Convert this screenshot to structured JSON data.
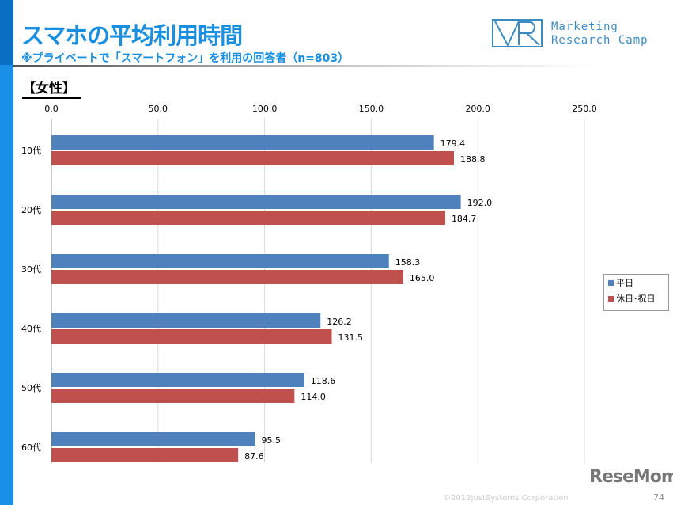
{
  "header": {
    "title": "スマホの平均利用時間",
    "subtitle": "※プライベートで「スマートフォン」を利用の回答者（n=803）",
    "logo_text_1": "Marketing",
    "logo_text_2": "Research Camp"
  },
  "section": "【女性】",
  "footer": {
    "copyright": "©2012JustSystems Corporation",
    "page": "74",
    "watermark": "ReseMom"
  },
  "chart_data": {
    "type": "bar",
    "orientation": "horizontal",
    "categories": [
      "10代",
      "20代",
      "30代",
      "40代",
      "50代",
      "60代"
    ],
    "series": [
      {
        "name": "平日",
        "color": "#4f81bd",
        "values": [
          179.4,
          192.0,
          158.3,
          126.2,
          118.6,
          95.5
        ]
      },
      {
        "name": "休日･祝日",
        "color": "#c0504d",
        "values": [
          188.8,
          184.7,
          165.0,
          131.5,
          114.0,
          87.6
        ]
      }
    ],
    "xlim": [
      0,
      250
    ],
    "ticks": [
      "0.0",
      "50.0",
      "100.0",
      "150.0",
      "200.0",
      "250.0"
    ],
    "grid": true,
    "legend": "right"
  }
}
